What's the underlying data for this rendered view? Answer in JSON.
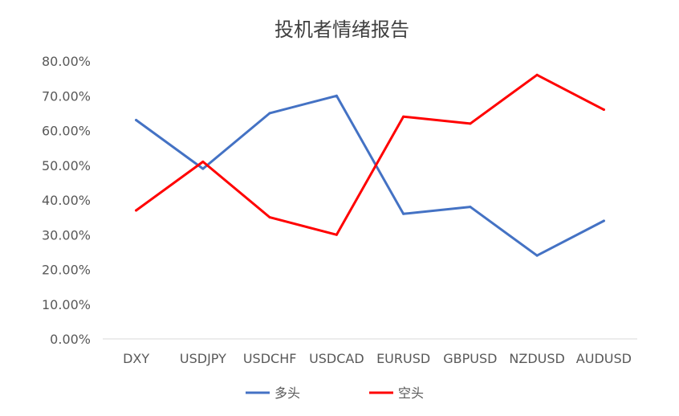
{
  "chart_data": {
    "type": "line",
    "title": "投机者情绪报告",
    "xlabel": "",
    "ylabel": "",
    "categories": [
      "DXY",
      "USDJPY",
      "USDCHF",
      "USDCAD",
      "EURUSD",
      "GBPUSD",
      "NZDUSD",
      "AUDUSD"
    ],
    "y_ticks": [
      "0.00%",
      "10.00%",
      "20.00%",
      "30.00%",
      "40.00%",
      "50.00%",
      "60.00%",
      "70.00%",
      "80.00%"
    ],
    "ylim": [
      0,
      0.8
    ],
    "grid": false,
    "legend_position": "bottom",
    "series": [
      {
        "name": "多头",
        "color": "#4472C4",
        "values": [
          0.63,
          0.49,
          0.65,
          0.7,
          0.36,
          0.38,
          0.24,
          0.34
        ]
      },
      {
        "name": "空头",
        "color": "#FF0000",
        "values": [
          0.37,
          0.51,
          0.35,
          0.3,
          0.64,
          0.62,
          0.76,
          0.66
        ]
      }
    ]
  }
}
